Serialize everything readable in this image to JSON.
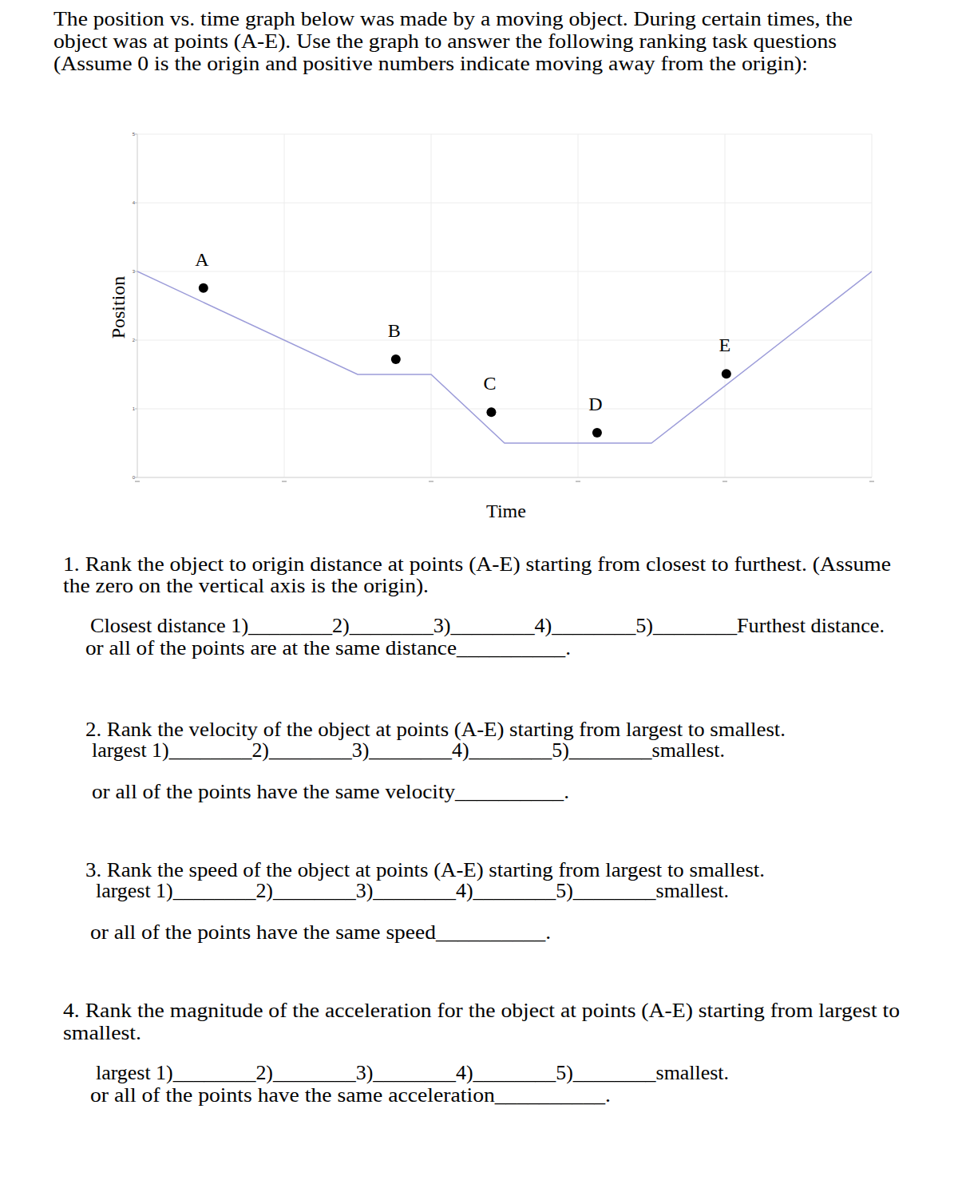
{
  "intro": [
    "The position vs. time graph below was made by a moving object. During certain times, the",
    "object was at points (A-E). Use the graph to answer the following ranking task questions",
    "(Assume 0 is the origin and positive numbers indicate moving away from the origin):"
  ],
  "chart_data": {
    "type": "line",
    "x_label": "Time",
    "y_label": "Position",
    "x": [
      0,
      1.5,
      2,
      2.5,
      3.5,
      5
    ],
    "values": [
      3,
      1.5,
      1.5,
      0.5,
      0.5,
      3
    ],
    "color": "#9c9cd9",
    "points": [
      {
        "label": "A",
        "x": 0.45,
        "y": 2.76
      },
      {
        "label": "B",
        "x": 1.76,
        "y": 1.72
      },
      {
        "label": "C",
        "x": 2.41,
        "y": 0.95
      },
      {
        "label": "D",
        "x": 3.13,
        "y": 0.65
      },
      {
        "label": "E",
        "x": 4.01,
        "y": 1.51
      }
    ],
    "xlim": [
      0,
      5
    ],
    "ylim": [
      0,
      5
    ],
    "xticks": [
      0,
      1,
      2,
      3,
      4,
      5
    ],
    "yticks": [
      0,
      1,
      2,
      3,
      4,
      5
    ],
    "grid": true,
    "tick_labels": "y"
  },
  "questions": [
    {
      "prompt": [
        "1. Rank the object to origin distance at points (A-E) starting from closest to furthest. (Assume",
        "the zero on the vertical axis is the origin)."
      ],
      "ranking": "Closest distance 1)________2)________3)________4)________5)________Furthest distance.",
      "same": "or all of the points are at the same distance__________."
    },
    {
      "prompt": [
        "2. Rank the velocity of the object at points (A-E) starting from largest to smallest."
      ],
      "ranking": "largest 1)________2)________3)________4)________5)________smallest.",
      "same": "or all of the points have the same velocity__________."
    },
    {
      "prompt": [
        "3. Rank the speed of the object at points (A-E) starting from largest to smallest."
      ],
      "ranking": "largest 1)________2)________3)________4)________5)________smallest.",
      "same": "or all of the points have the same speed__________."
    },
    {
      "prompt": [
        "4. Rank the magnitude of the acceleration for the object at points (A-E) starting from largest to",
        "smallest."
      ],
      "ranking": "largest 1)________2)________3)________4)________5)________smallest.",
      "same": "or all of the points have the same acceleration__________."
    }
  ]
}
